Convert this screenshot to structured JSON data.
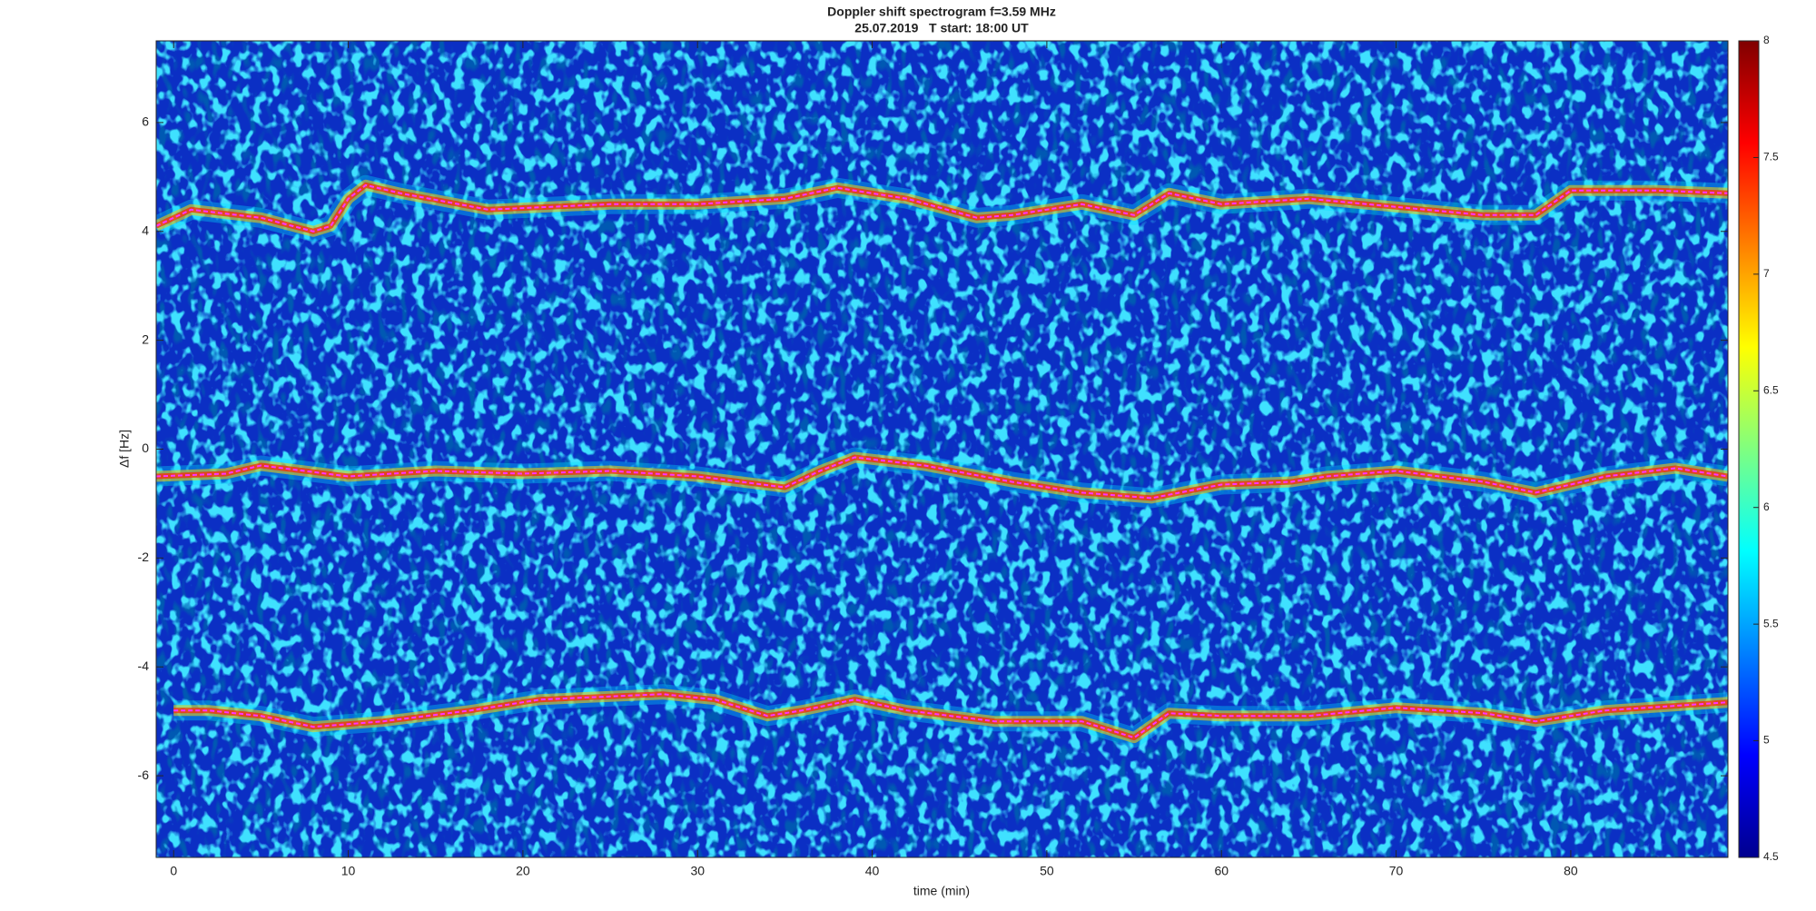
{
  "chart_data": {
    "type": "line",
    "title": "Doppler shift spectrogram f=3.59 MHz",
    "subtitle": "25.07.2019   T start: 18:00 UT",
    "x_label": "time (min)",
    "y_label": "Δf [Hz]",
    "xlim": [
      -1,
      89
    ],
    "xticks": [
      0,
      10,
      20,
      30,
      40,
      50,
      60,
      70,
      80
    ],
    "ylim": [
      -7.5,
      7.5
    ],
    "yticks": [
      -6,
      -4,
      -2,
      0,
      2,
      4,
      6
    ],
    "colormap": "jet",
    "clim": [
      4.5,
      8
    ],
    "cticks": [
      4.5,
      5,
      5.5,
      6,
      6.5,
      7,
      7.5,
      8
    ],
    "series": [
      {
        "name": "upper trace",
        "color": "#ff33ff",
        "x": [
          -1,
          1,
          5,
          8,
          9,
          10,
          11,
          13,
          18,
          25,
          30,
          35,
          38,
          42,
          46,
          48,
          52,
          55,
          57,
          60,
          65,
          70,
          75,
          78,
          80,
          85,
          89
        ],
        "values": [
          4.1,
          4.4,
          4.25,
          4.0,
          4.1,
          4.6,
          4.85,
          4.7,
          4.4,
          4.5,
          4.5,
          4.6,
          4.8,
          4.6,
          4.25,
          4.3,
          4.5,
          4.3,
          4.7,
          4.5,
          4.6,
          4.45,
          4.3,
          4.3,
          4.75,
          4.75,
          4.7
        ]
      },
      {
        "name": "middle trace",
        "color": "#ff33ff",
        "x": [
          -1,
          3,
          5,
          10,
          15,
          20,
          25,
          30,
          35,
          37,
          39,
          43,
          48,
          52,
          56,
          60,
          64,
          66,
          70,
          75,
          78,
          82,
          86,
          89
        ],
        "values": [
          -0.5,
          -0.45,
          -0.3,
          -0.5,
          -0.4,
          -0.45,
          -0.4,
          -0.5,
          -0.7,
          -0.4,
          -0.15,
          -0.3,
          -0.6,
          -0.8,
          -0.9,
          -0.65,
          -0.6,
          -0.5,
          -0.4,
          -0.6,
          -0.8,
          -0.5,
          -0.35,
          -0.5
        ]
      },
      {
        "name": "lower trace",
        "color": "#ff33ff",
        "x": [
          0,
          2,
          5,
          8,
          12,
          17,
          21,
          28,
          31,
          34,
          36,
          39,
          42,
          47,
          52,
          55,
          57,
          60,
          65,
          70,
          75,
          78,
          82,
          89
        ],
        "values": [
          -4.8,
          -4.8,
          -4.9,
          -5.1,
          -5.0,
          -4.8,
          -4.6,
          -4.5,
          -4.6,
          -4.9,
          -4.8,
          -4.6,
          -4.8,
          -5.0,
          -5.0,
          -5.3,
          -4.85,
          -4.9,
          -4.9,
          -4.75,
          -4.85,
          -5.0,
          -4.8,
          -4.65
        ]
      }
    ]
  }
}
